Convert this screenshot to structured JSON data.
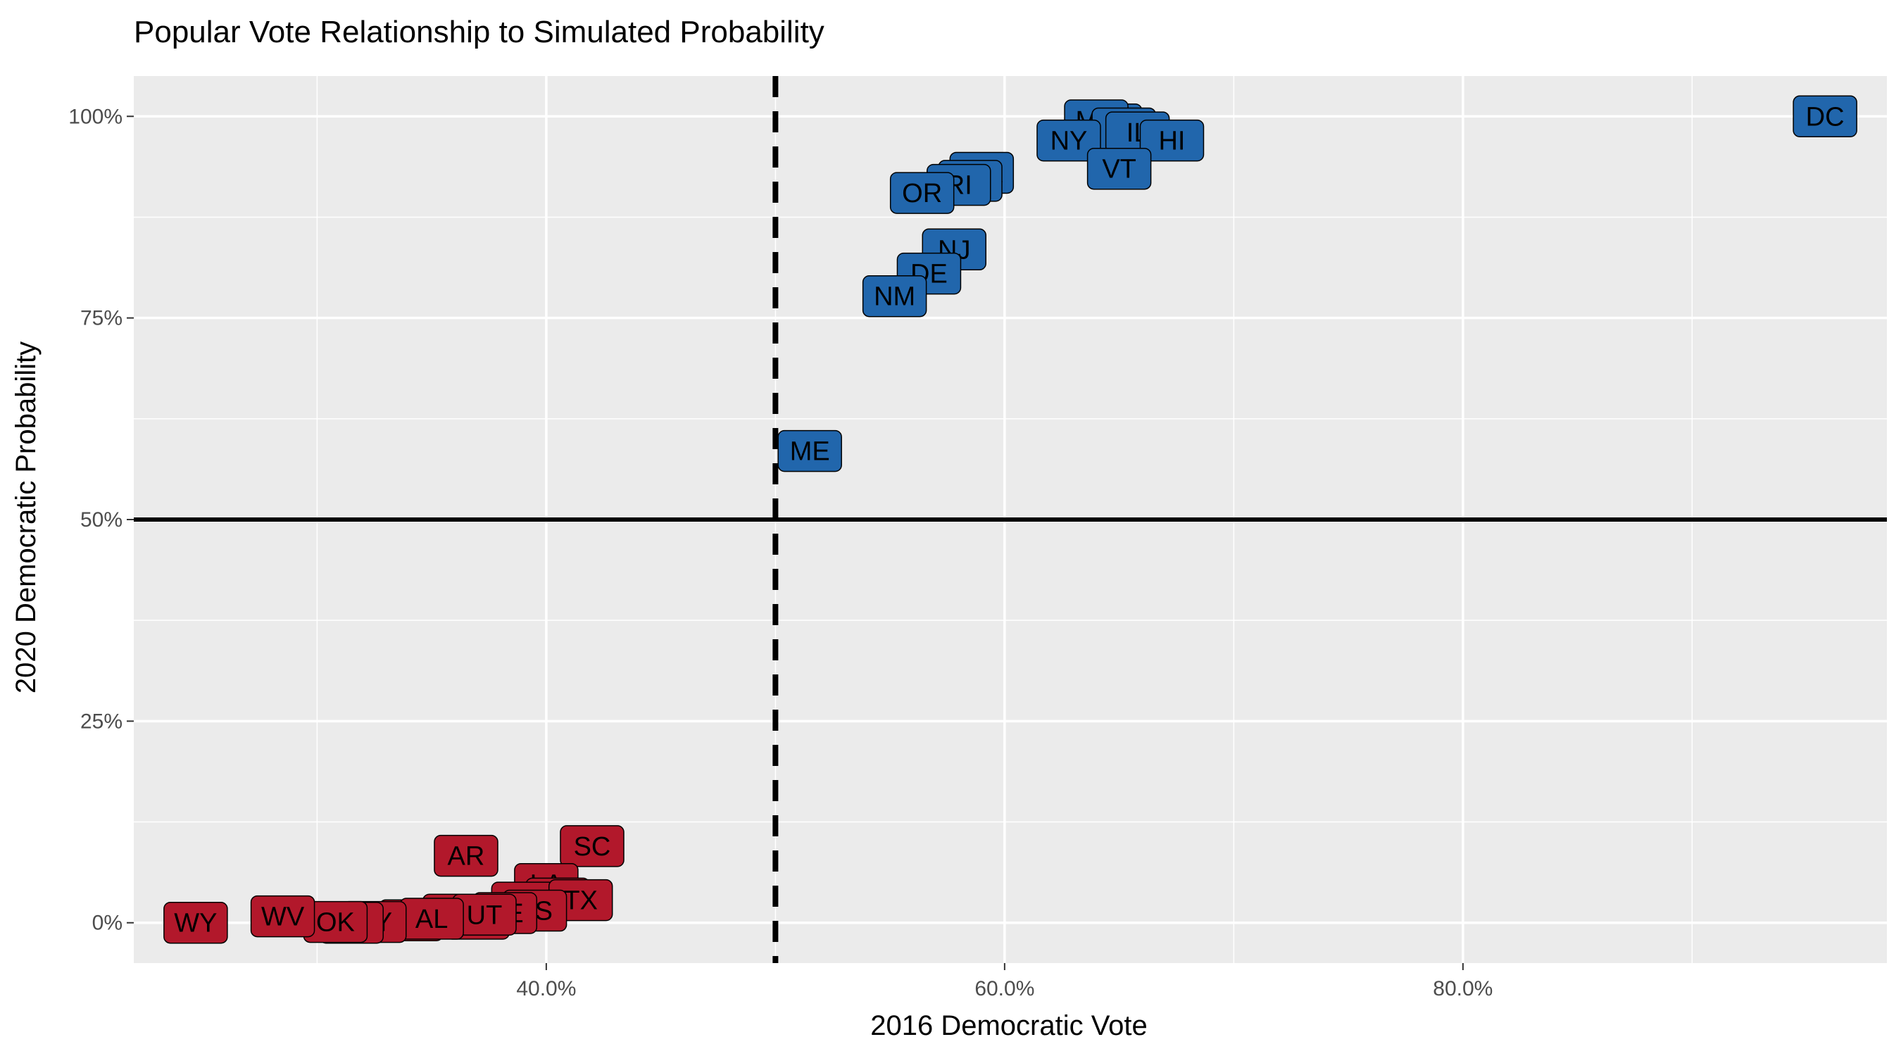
{
  "chart_data": {
    "type": "scatter",
    "title": "Popular Vote Relationship to Simulated Probability",
    "xlabel": "2016 Democratic Vote",
    "ylabel": "2020 Democratic Probability",
    "xlim": [
      0.22,
      0.985
    ],
    "ylim": [
      -0.05,
      1.05
    ],
    "x_ticks": [
      {
        "value": 0.4,
        "label": "40.0%"
      },
      {
        "value": 0.6,
        "label": "60.0%"
      },
      {
        "value": 0.8,
        "label": "80.0%"
      }
    ],
    "x_minor_ticks": [
      0.3,
      0.5,
      0.7,
      0.9
    ],
    "y_ticks": [
      {
        "value": 0.0,
        "label": "0%"
      },
      {
        "value": 0.25,
        "label": "25%"
      },
      {
        "value": 0.5,
        "label": "50%"
      },
      {
        "value": 0.75,
        "label": "75%"
      },
      {
        "value": 1.0,
        "label": "100%"
      }
    ],
    "y_minor_ticks": [
      0.125,
      0.375,
      0.625,
      0.875
    ],
    "grid": true,
    "reference_lines": [
      {
        "orientation": "vertical",
        "value": 0.5,
        "style": "dashed"
      },
      {
        "orientation": "horizontal",
        "value": 0.5,
        "style": "solid"
      }
    ],
    "colors": {
      "dem": "#2166ac",
      "rep": "#b2182b",
      "panel": "#ebebeb",
      "grid": "#ffffff"
    },
    "series": [
      {
        "party": "dem",
        "points": [
          {
            "label": "CA",
            "x": 0.646,
            "y": 0.99
          },
          {
            "label": "MD",
            "x": 0.64,
            "y": 0.995
          },
          {
            "label": "MA",
            "x": 0.652,
            "y": 0.985
          },
          {
            "label": "IL",
            "x": 0.658,
            "y": 0.98
          },
          {
            "label": "HI",
            "x": 0.673,
            "y": 0.97
          },
          {
            "label": "NY",
            "x": 0.628,
            "y": 0.97
          },
          {
            "label": "VT",
            "x": 0.65,
            "y": 0.935
          },
          {
            "label": "WA",
            "x": 0.59,
            "y": 0.93
          },
          {
            "label": "CT",
            "x": 0.585,
            "y": 0.92
          },
          {
            "label": "RI",
            "x": 0.58,
            "y": 0.915
          },
          {
            "label": "OR",
            "x": 0.564,
            "y": 0.905
          },
          {
            "label": "NJ",
            "x": 0.578,
            "y": 0.835
          },
          {
            "label": "DE",
            "x": 0.567,
            "y": 0.805
          },
          {
            "label": "NM",
            "x": 0.552,
            "y": 0.777
          },
          {
            "label": "ME",
            "x": 0.515,
            "y": 0.585
          },
          {
            "label": "DC",
            "x": 0.958,
            "y": 1.0
          }
        ]
      },
      {
        "party": "rep",
        "points": [
          {
            "label": "SC",
            "x": 0.42,
            "y": 0.095
          },
          {
            "label": "AR",
            "x": 0.365,
            "y": 0.083
          },
          {
            "label": "LA",
            "x": 0.4,
            "y": 0.048
          },
          {
            "label": "MO",
            "x": 0.405,
            "y": 0.03
          },
          {
            "label": "MT",
            "x": 0.39,
            "y": 0.025
          },
          {
            "label": "TX",
            "x": 0.415,
            "y": 0.028
          },
          {
            "label": "KS",
            "x": 0.395,
            "y": 0.015
          },
          {
            "label": "NE",
            "x": 0.382,
            "y": 0.012
          },
          {
            "label": "ND",
            "x": 0.37,
            "y": 0.005
          },
          {
            "label": "TN",
            "x": 0.36,
            "y": 0.01
          },
          {
            "label": "UT",
            "x": 0.373,
            "y": 0.01
          },
          {
            "label": "SD",
            "x": 0.341,
            "y": 0.003
          },
          {
            "label": "AL",
            "x": 0.35,
            "y": 0.005
          },
          {
            "label": "KY",
            "x": 0.325,
            "y": 0.001
          },
          {
            "label": "ID",
            "x": 0.315,
            "y": 0.0
          },
          {
            "label": "OK",
            "x": 0.308,
            "y": 0.001
          },
          {
            "label": "WV",
            "x": 0.285,
            "y": 0.008
          },
          {
            "label": "WY",
            "x": 0.247,
            "y": 0.0
          }
        ]
      }
    ]
  }
}
